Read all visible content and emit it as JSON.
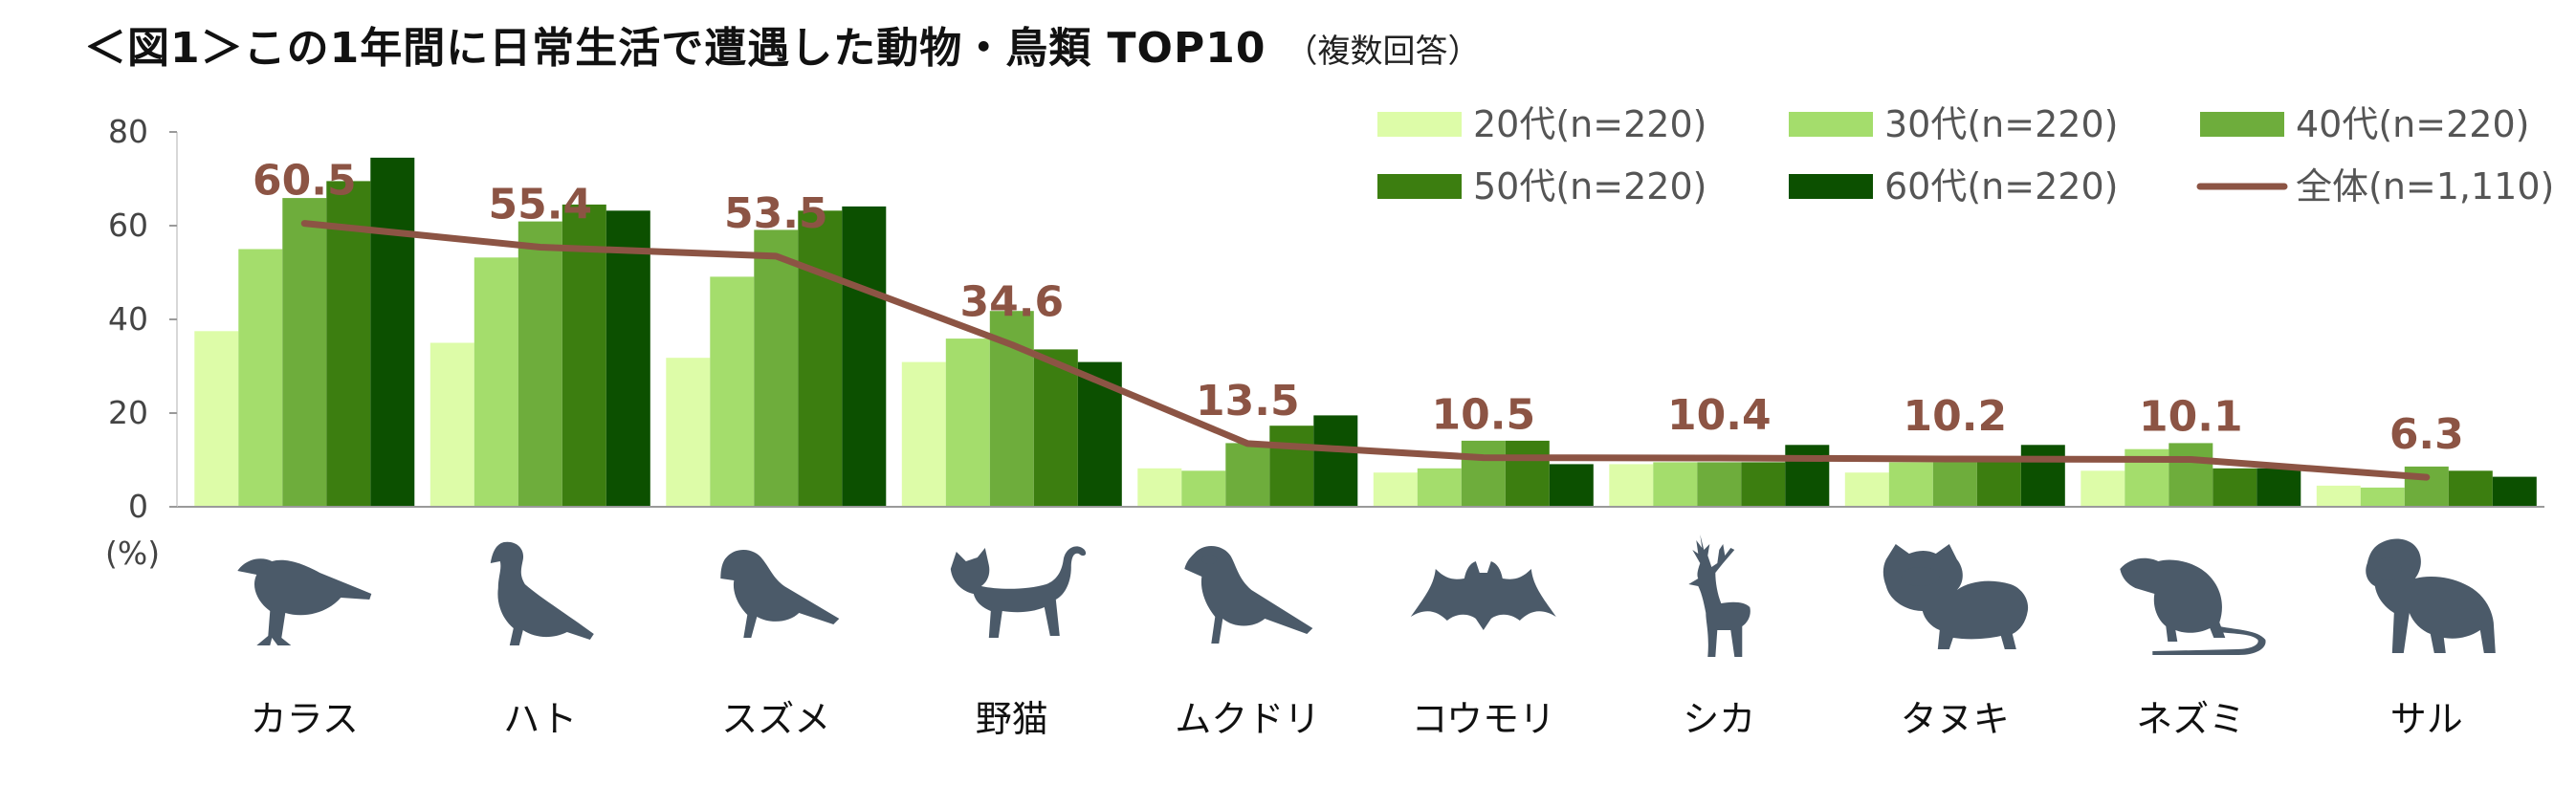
{
  "title": {
    "main": "＜図1＞この1年間に日常生活で遭遇した動物・鳥類 TOP10",
    "note": "（複数回答）"
  },
  "chart_data": {
    "type": "bar",
    "categories": [
      "カラス",
      "ハト",
      "スズメ",
      "野猫",
      "ムクドリ",
      "コウモリ",
      "シカ",
      "タヌキ",
      "ネズミ",
      "サル"
    ],
    "series": [
      {
        "name": "20代(n=220)",
        "color": "#ddfca8",
        "values": [
          37.5,
          35.0,
          31.8,
          30.9,
          8.2,
          7.3,
          9.1,
          7.3,
          7.7,
          4.5
        ]
      },
      {
        "name": "30代(n=220)",
        "color": "#a4dd6c",
        "values": [
          55.0,
          53.2,
          49.1,
          35.9,
          7.7,
          8.2,
          9.5,
          9.5,
          12.3,
          4.1
        ]
      },
      {
        "name": "40代(n=220)",
        "color": "#6ead3c",
        "values": [
          65.9,
          60.9,
          59.1,
          41.8,
          13.6,
          14.1,
          9.5,
          9.5,
          13.6,
          8.6
        ]
      },
      {
        "name": "50代(n=220)",
        "color": "#3c7e10",
        "values": [
          69.5,
          64.5,
          63.2,
          33.6,
          17.3,
          14.1,
          9.5,
          9.5,
          8.2,
          7.7
        ]
      },
      {
        "name": "60代(n=220)",
        "color": "#0c5000",
        "values": [
          74.5,
          63.2,
          64.1,
          30.9,
          19.5,
          9.1,
          13.2,
          13.2,
          8.2,
          6.4
        ]
      }
    ],
    "line_series": {
      "name": "全体(n=1,110)",
      "color": "#8c5444",
      "values": [
        60.5,
        55.4,
        53.5,
        34.6,
        13.5,
        10.5,
        10.4,
        10.2,
        10.1,
        6.3
      ],
      "labels": [
        "60.5",
        "55.4",
        "53.5",
        "34.6",
        "13.5",
        "10.5",
        "10.4",
        "10.2",
        "10.1",
        "6.3"
      ]
    },
    "ylim": [
      0,
      80
    ],
    "yticks": [
      "0",
      "20",
      "40",
      "60",
      "80"
    ],
    "ylabel": "(%)",
    "xlabel": "",
    "grid": false,
    "legend_position": "top-right"
  },
  "icons": [
    "crow-icon",
    "pigeon-icon",
    "sparrow-icon",
    "cat-icon",
    "starling-icon",
    "bat-icon",
    "deer-icon",
    "raccoon-dog-icon",
    "rat-icon",
    "monkey-icon"
  ]
}
